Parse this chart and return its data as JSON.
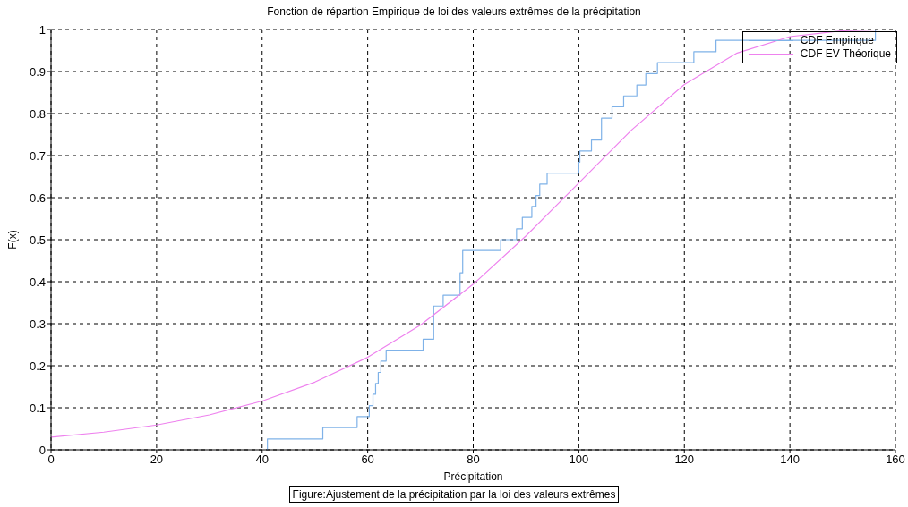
{
  "chart_data": {
    "type": "line",
    "title": "Fonction de répartion Empirique de loi des valeurs extrêmes de la précipitation",
    "xlabel": "Précipitation",
    "ylabel": "F(x)",
    "annotations": [
      "Figure:Ajustement de la précipitation par la loi des valeurs extrêmes"
    ],
    "xlim": [
      0,
      160
    ],
    "xticks": [
      0,
      20,
      40,
      60,
      80,
      100,
      120,
      140,
      160
    ],
    "ylim": [
      0,
      1
    ],
    "yticks": [
      0,
      0.1,
      0.2,
      0.3,
      0.4,
      0.5,
      0.6,
      0.7,
      0.8,
      0.9,
      1
    ],
    "grid": true,
    "legend": "top right",
    "line_style": "solid",
    "marker": "none",
    "series": [
      {
        "name": "CDF Empirique",
        "type": "step",
        "color": "#7fb2e8",
        "x": [
          41,
          41,
          51.5,
          58,
          60.3,
          61,
          61.5,
          62,
          62.5,
          63.5,
          70.5,
          72.5,
          72.5,
          72.5,
          74.3,
          77.5,
          77.5,
          78,
          78,
          85.2,
          88.2,
          89.3,
          91.1,
          91.9,
          92.6,
          94,
          100,
          100.2,
          102.4,
          104.3,
          104.3,
          106.3,
          108.5,
          111,
          112.7,
          114.9,
          121.8,
          126,
          156.2
        ],
        "values": [
          0,
          0.026,
          0.053,
          0.079,
          0.105,
          0.132,
          0.158,
          0.184,
          0.211,
          0.237,
          0.263,
          0.289,
          0.316,
          0.342,
          0.368,
          0.395,
          0.421,
          0.447,
          0.474,
          0.5,
          0.526,
          0.553,
          0.579,
          0.605,
          0.632,
          0.658,
          0.684,
          0.711,
          0.737,
          0.763,
          0.789,
          0.816,
          0.842,
          0.868,
          0.895,
          0.921,
          0.947,
          0.974,
          1
        ]
      },
      {
        "name": "CDF EV Théorique",
        "type": "line",
        "color": "#ee82ee",
        "x": [
          0,
          10,
          20,
          30,
          40,
          50,
          60,
          70,
          80,
          90,
          100,
          110,
          120,
          130,
          140,
          150,
          160
        ],
        "values": [
          0.03,
          0.042,
          0.059,
          0.083,
          0.116,
          0.161,
          0.22,
          0.297,
          0.394,
          0.509,
          0.635,
          0.761,
          0.869,
          0.944,
          0.983,
          0.997,
          1
        ]
      }
    ]
  }
}
